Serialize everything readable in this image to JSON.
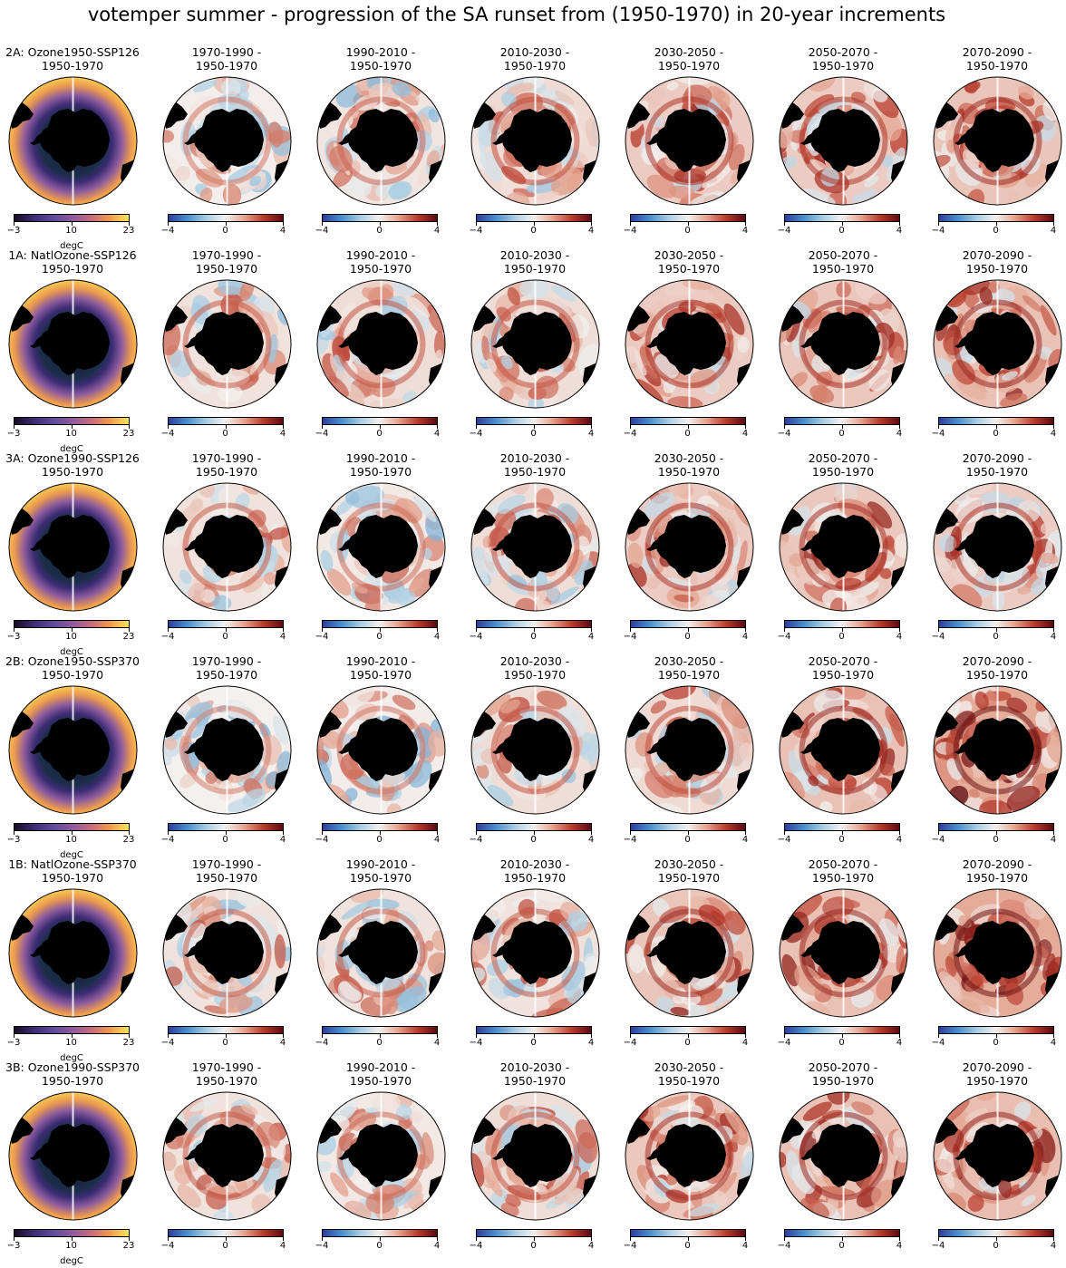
{
  "figure": {
    "title": "votemper summer - progression of the SA runset from (1950-1970) in 20-year increments"
  },
  "colors": {
    "absolute_cmap": [
      "#1a0b26",
      "#3b2c73",
      "#5e4a9a",
      "#8b5a9e",
      "#c46a7f",
      "#ec9a4f",
      "#fde457"
    ],
    "anomaly_cmap": [
      "#2a3f9e",
      "#4b8ec9",
      "#a9cde3",
      "#f3f0ee",
      "#e3a08c",
      "#b83a2b",
      "#5b0a10"
    ],
    "land": "#000000",
    "ocean_blank": "#ffffff"
  },
  "chart_data": {
    "type": "heatmap",
    "projection": "south-polar-stereographic",
    "variable": "votemper",
    "season": "summer",
    "rows": [
      {
        "scenario_label": "2A: Ozone1950-SSP126",
        "panels": [
          {
            "title_line1": "2A: Ozone1950-SSP126",
            "title_line2": "1950-1970",
            "field": "absolute",
            "cbar_ticks": [
              "−3",
              "10",
              "23"
            ],
            "vmin": -3,
            "vmax": 23,
            "unit": "degC",
            "mean_anomaly": 0
          },
          {
            "title_line1": "1970-1990 -",
            "title_line2": "1950-1970",
            "field": "anomaly",
            "cbar_ticks": [
              "−4",
              "0",
              "4"
            ],
            "vmin": -4,
            "vmax": 4,
            "mean_anomaly": 0.05
          },
          {
            "title_line1": "1990-2010 -",
            "title_line2": "1950-1970",
            "field": "anomaly",
            "cbar_ticks": [
              "−4",
              "0",
              "4"
            ],
            "vmin": -4,
            "vmax": 4,
            "mean_anomaly": 0.3
          },
          {
            "title_line1": "2010-2030 -",
            "title_line2": "1950-1970",
            "field": "anomaly",
            "cbar_ticks": [
              "−4",
              "0",
              "4"
            ],
            "vmin": -4,
            "vmax": 4,
            "mean_anomaly": 0.6
          },
          {
            "title_line1": "2030-2050 -",
            "title_line2": "1950-1970",
            "field": "anomaly",
            "cbar_ticks": [
              "−4",
              "0",
              "4"
            ],
            "vmin": -4,
            "vmax": 4,
            "mean_anomaly": 1.0
          },
          {
            "title_line1": "2050-2070 -",
            "title_line2": "1950-1970",
            "field": "anomaly",
            "cbar_ticks": [
              "−4",
              "0",
              "4"
            ],
            "vmin": -4,
            "vmax": 4,
            "mean_anomaly": 1.0
          },
          {
            "title_line1": "2070-2090 -",
            "title_line2": "1950-1970",
            "field": "anomaly",
            "cbar_ticks": [
              "−4",
              "0",
              "4"
            ],
            "vmin": -4,
            "vmax": 4,
            "mean_anomaly": 1.2
          }
        ]
      },
      {
        "scenario_label": "1A: NatlOzone-SSP126",
        "panels": [
          {
            "title_line1": "1A: NatlOzone-SSP126",
            "title_line2": "1950-1970",
            "field": "absolute",
            "cbar_ticks": [
              "−3",
              "10",
              "23"
            ],
            "vmin": -3,
            "vmax": 23,
            "unit": "degC",
            "mean_anomaly": 0
          },
          {
            "title_line1": "1970-1990 -",
            "title_line2": "1950-1970",
            "field": "anomaly",
            "cbar_ticks": [
              "−4",
              "0",
              "4"
            ],
            "vmin": -4,
            "vmax": 4,
            "mean_anomaly": 0.4
          },
          {
            "title_line1": "1990-2010 -",
            "title_line2": "1950-1970",
            "field": "anomaly",
            "cbar_ticks": [
              "−4",
              "0",
              "4"
            ],
            "vmin": -4,
            "vmax": 4,
            "mean_anomaly": 0.5
          },
          {
            "title_line1": "2010-2030 -",
            "title_line2": "1950-1970",
            "field": "anomaly",
            "cbar_ticks": [
              "−4",
              "0",
              "4"
            ],
            "vmin": -4,
            "vmax": 4,
            "mean_anomaly": 0.5
          },
          {
            "title_line1": "2030-2050 -",
            "title_line2": "1950-1970",
            "field": "anomaly",
            "cbar_ticks": [
              "−4",
              "0",
              "4"
            ],
            "vmin": -4,
            "vmax": 4,
            "mean_anomaly": 1.0
          },
          {
            "title_line1": "2050-2070 -",
            "title_line2": "1950-1970",
            "field": "anomaly",
            "cbar_ticks": [
              "−4",
              "0",
              "4"
            ],
            "vmin": -4,
            "vmax": 4,
            "mean_anomaly": 1.1
          },
          {
            "title_line1": "2070-2090 -",
            "title_line2": "1950-1970",
            "field": "anomaly",
            "cbar_ticks": [
              "−4",
              "0",
              "4"
            ],
            "vmin": -4,
            "vmax": 4,
            "mean_anomaly": 1.3
          }
        ]
      },
      {
        "scenario_label": "3A: Ozone1990-SSP126",
        "panels": [
          {
            "title_line1": "3A: Ozone1990-SSP126",
            "title_line2": "1950-1970",
            "field": "absolute",
            "cbar_ticks": [
              "−3",
              "10",
              "23"
            ],
            "vmin": -3,
            "vmax": 23,
            "unit": "degC",
            "mean_anomaly": 0
          },
          {
            "title_line1": "1970-1990 -",
            "title_line2": "1950-1970",
            "field": "anomaly",
            "cbar_ticks": [
              "−4",
              "0",
              "4"
            ],
            "vmin": -4,
            "vmax": 4,
            "mean_anomaly": 0.4
          },
          {
            "title_line1": "1990-2010 -",
            "title_line2": "1950-1970",
            "field": "anomaly",
            "cbar_ticks": [
              "−4",
              "0",
              "4"
            ],
            "vmin": -4,
            "vmax": 4,
            "mean_anomaly": 0.2
          },
          {
            "title_line1": "2010-2030 -",
            "title_line2": "1950-1970",
            "field": "anomaly",
            "cbar_ticks": [
              "−4",
              "0",
              "4"
            ],
            "vmin": -4,
            "vmax": 4,
            "mean_anomaly": 0.5
          },
          {
            "title_line1": "2030-2050 -",
            "title_line2": "1950-1970",
            "field": "anomaly",
            "cbar_ticks": [
              "−4",
              "0",
              "4"
            ],
            "vmin": -4,
            "vmax": 4,
            "mean_anomaly": 1.0
          },
          {
            "title_line1": "2050-2070 -",
            "title_line2": "1950-1970",
            "field": "anomaly",
            "cbar_ticks": [
              "−4",
              "0",
              "4"
            ],
            "vmin": -4,
            "vmax": 4,
            "mean_anomaly": 1.1
          },
          {
            "title_line1": "2070-2090 -",
            "title_line2": "1950-1970",
            "field": "anomaly",
            "cbar_ticks": [
              "−4",
              "0",
              "4"
            ],
            "vmin": -4,
            "vmax": 4,
            "mean_anomaly": 1.0
          }
        ]
      },
      {
        "scenario_label": "2B: Ozone1950-SSP370",
        "panels": [
          {
            "title_line1": "2B: Ozone1950-SSP370",
            "title_line2": "1950-1970",
            "field": "absolute",
            "cbar_ticks": [
              "−3",
              "10",
              "23"
            ],
            "vmin": -3,
            "vmax": 23,
            "unit": "degC",
            "mean_anomaly": 0
          },
          {
            "title_line1": "1970-1990 -",
            "title_line2": "1950-1970",
            "field": "anomaly",
            "cbar_ticks": [
              "−4",
              "0",
              "4"
            ],
            "vmin": -4,
            "vmax": 4,
            "mean_anomaly": 0.0
          },
          {
            "title_line1": "1990-2010 -",
            "title_line2": "1950-1970",
            "field": "anomaly",
            "cbar_ticks": [
              "−4",
              "0",
              "4"
            ],
            "vmin": -4,
            "vmax": 4,
            "mean_anomaly": 0.1
          },
          {
            "title_line1": "2010-2030 -",
            "title_line2": "1950-1970",
            "field": "anomaly",
            "cbar_ticks": [
              "−4",
              "0",
              "4"
            ],
            "vmin": -4,
            "vmax": 4,
            "mean_anomaly": 0.5
          },
          {
            "title_line1": "2030-2050 -",
            "title_line2": "1950-1970",
            "field": "anomaly",
            "cbar_ticks": [
              "−4",
              "0",
              "4"
            ],
            "vmin": -4,
            "vmax": 4,
            "mean_anomaly": 0.6
          },
          {
            "title_line1": "2050-2070 -",
            "title_line2": "1950-1970",
            "field": "anomaly",
            "cbar_ticks": [
              "−4",
              "0",
              "4"
            ],
            "vmin": -4,
            "vmax": 4,
            "mean_anomaly": 1.3
          },
          {
            "title_line1": "2070-2090 -",
            "title_line2": "1950-1970",
            "field": "anomaly",
            "cbar_ticks": [
              "−4",
              "0",
              "4"
            ],
            "vmin": -4,
            "vmax": 4,
            "mean_anomaly": 1.9
          }
        ]
      },
      {
        "scenario_label": "1B: NatlOzone-SSP370",
        "panels": [
          {
            "title_line1": "1B: NatlOzone-SSP370",
            "title_line2": "1950-1970",
            "field": "absolute",
            "cbar_ticks": [
              "−3",
              "10",
              "23"
            ],
            "vmin": -3,
            "vmax": 23,
            "unit": "degC",
            "mean_anomaly": 0
          },
          {
            "title_line1": "1970-1990 -",
            "title_line2": "1950-1970",
            "field": "anomaly",
            "cbar_ticks": [
              "−4",
              "0",
              "4"
            ],
            "vmin": -4,
            "vmax": 4,
            "mean_anomaly": 0.4
          },
          {
            "title_line1": "1990-2010 -",
            "title_line2": "1950-1970",
            "field": "anomaly",
            "cbar_ticks": [
              "−4",
              "0",
              "4"
            ],
            "vmin": -4,
            "vmax": 4,
            "mean_anomaly": 0.4
          },
          {
            "title_line1": "2010-2030 -",
            "title_line2": "1950-1970",
            "field": "anomaly",
            "cbar_ticks": [
              "−4",
              "0",
              "4"
            ],
            "vmin": -4,
            "vmax": 4,
            "mean_anomaly": 0.4
          },
          {
            "title_line1": "2030-2050 -",
            "title_line2": "1950-1970",
            "field": "anomaly",
            "cbar_ticks": [
              "−4",
              "0",
              "4"
            ],
            "vmin": -4,
            "vmax": 4,
            "mean_anomaly": 1.2
          },
          {
            "title_line1": "2050-2070 -",
            "title_line2": "1950-1970",
            "field": "anomaly",
            "cbar_ticks": [
              "−4",
              "0",
              "4"
            ],
            "vmin": -4,
            "vmax": 4,
            "mean_anomaly": 1.3
          },
          {
            "title_line1": "2070-2090 -",
            "title_line2": "1950-1970",
            "field": "anomaly",
            "cbar_ticks": [
              "−4",
              "0",
              "4"
            ],
            "vmin": -4,
            "vmax": 4,
            "mean_anomaly": 1.9
          }
        ]
      },
      {
        "scenario_label": "3B: Ozone1990-SSP370",
        "panels": [
          {
            "title_line1": "3B: Ozone1990-SSP370",
            "title_line2": "1950-1970",
            "field": "absolute",
            "cbar_ticks": [
              "−3",
              "10",
              "23"
            ],
            "vmin": -3,
            "vmax": 23,
            "unit": "degC",
            "mean_anomaly": 0
          },
          {
            "title_line1": "1970-1990 -",
            "title_line2": "1950-1970",
            "field": "anomaly",
            "cbar_ticks": [
              "−4",
              "0",
              "4"
            ],
            "vmin": -4,
            "vmax": 4,
            "mean_anomaly": 0.4
          },
          {
            "title_line1": "1990-2010 -",
            "title_line2": "1950-1970",
            "field": "anomaly",
            "cbar_ticks": [
              "−4",
              "0",
              "4"
            ],
            "vmin": -4,
            "vmax": 4,
            "mean_anomaly": 0.2
          },
          {
            "title_line1": "2010-2030 -",
            "title_line2": "1950-1970",
            "field": "anomaly",
            "cbar_ticks": [
              "−4",
              "0",
              "4"
            ],
            "vmin": -4,
            "vmax": 4,
            "mean_anomaly": 0.5
          },
          {
            "title_line1": "2030-2050 -",
            "title_line2": "1950-1970",
            "field": "anomaly",
            "cbar_ticks": [
              "−4",
              "0",
              "4"
            ],
            "vmin": -4,
            "vmax": 4,
            "mean_anomaly": 1.1
          },
          {
            "title_line1": "2050-2070 -",
            "title_line2": "1950-1970",
            "field": "anomaly",
            "cbar_ticks": [
              "−4",
              "0",
              "4"
            ],
            "vmin": -4,
            "vmax": 4,
            "mean_anomaly": 1.3
          },
          {
            "title_line1": "2070-2090 -",
            "title_line2": "1950-1970",
            "field": "anomaly",
            "cbar_ticks": [
              "−4",
              "0",
              "4"
            ],
            "vmin": -4,
            "vmax": 4,
            "mean_anomaly": 1.4
          }
        ]
      }
    ]
  }
}
